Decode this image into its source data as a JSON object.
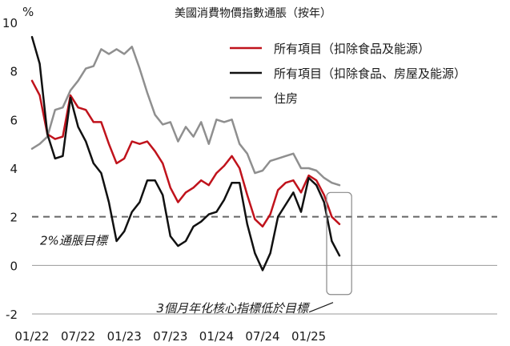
{
  "chart_data": {
    "type": "line",
    "title": "美國消費物價指數通脹（按年）",
    "ylabel": "%",
    "ylim": [
      -2,
      10
    ],
    "yticks": [
      -2,
      0,
      2,
      4,
      6,
      8,
      10
    ],
    "x_start": "2022-01",
    "x_tick_labels": [
      "01/22",
      "07/22",
      "01/23",
      "07/23",
      "01/24",
      "07/24",
      "01/25"
    ],
    "grid": false,
    "legend_position": "top-right",
    "target_line": {
      "value": 2,
      "label": "2%通脹目標",
      "color": "#666666",
      "style": "dashed"
    },
    "annotation": {
      "text": "3個月年化核心指標低於目標",
      "highlight_from_month_index": 40,
      "highlight_to_month_index": 42,
      "highlight_ylim": [
        -1.2,
        3
      ]
    },
    "series": [
      {
        "name": "所有項目（扣除食品及能源）",
        "color": "#c0131c",
        "values": [
          7.6,
          7.0,
          5.4,
          5.2,
          5.3,
          7.0,
          6.5,
          6.4,
          5.9,
          5.9,
          5.0,
          4.2,
          4.4,
          5.1,
          5.0,
          5.1,
          4.7,
          4.2,
          3.2,
          2.6,
          3.0,
          3.2,
          3.5,
          3.3,
          3.8,
          4.1,
          4.5,
          4.0,
          2.9,
          1.9,
          1.6,
          2.1,
          3.1,
          3.4,
          3.5,
          3.0,
          3.7,
          3.5,
          2.9,
          2.0,
          1.7
        ]
      },
      {
        "name": "所有項目（扣除食品、房屋及能源）",
        "color": "#111111",
        "values": [
          9.4,
          8.3,
          5.4,
          4.4,
          4.5,
          6.9,
          5.7,
          5.1,
          4.2,
          3.8,
          2.6,
          1.0,
          1.4,
          2.2,
          2.6,
          3.5,
          3.5,
          2.9,
          1.2,
          0.8,
          1.0,
          1.6,
          1.8,
          2.1,
          2.2,
          2.7,
          3.4,
          3.4,
          1.7,
          0.5,
          -0.2,
          0.5,
          2.0,
          2.5,
          3.0,
          2.2,
          3.6,
          3.3,
          2.6,
          1.0,
          0.4
        ]
      },
      {
        "name": "住房",
        "color": "#8f8f8f",
        "values": [
          4.8,
          5.0,
          5.3,
          6.4,
          6.5,
          7.2,
          7.6,
          8.1,
          8.2,
          8.9,
          8.7,
          8.9,
          8.7,
          9.0,
          8.1,
          7.1,
          6.2,
          5.8,
          5.9,
          5.1,
          5.7,
          5.3,
          5.9,
          5.0,
          6.0,
          5.9,
          6.0,
          5.0,
          4.6,
          3.8,
          3.9,
          4.3,
          4.4,
          4.5,
          4.6,
          4.0,
          4.0,
          3.9,
          3.6,
          3.4,
          3.3
        ]
      }
    ]
  }
}
